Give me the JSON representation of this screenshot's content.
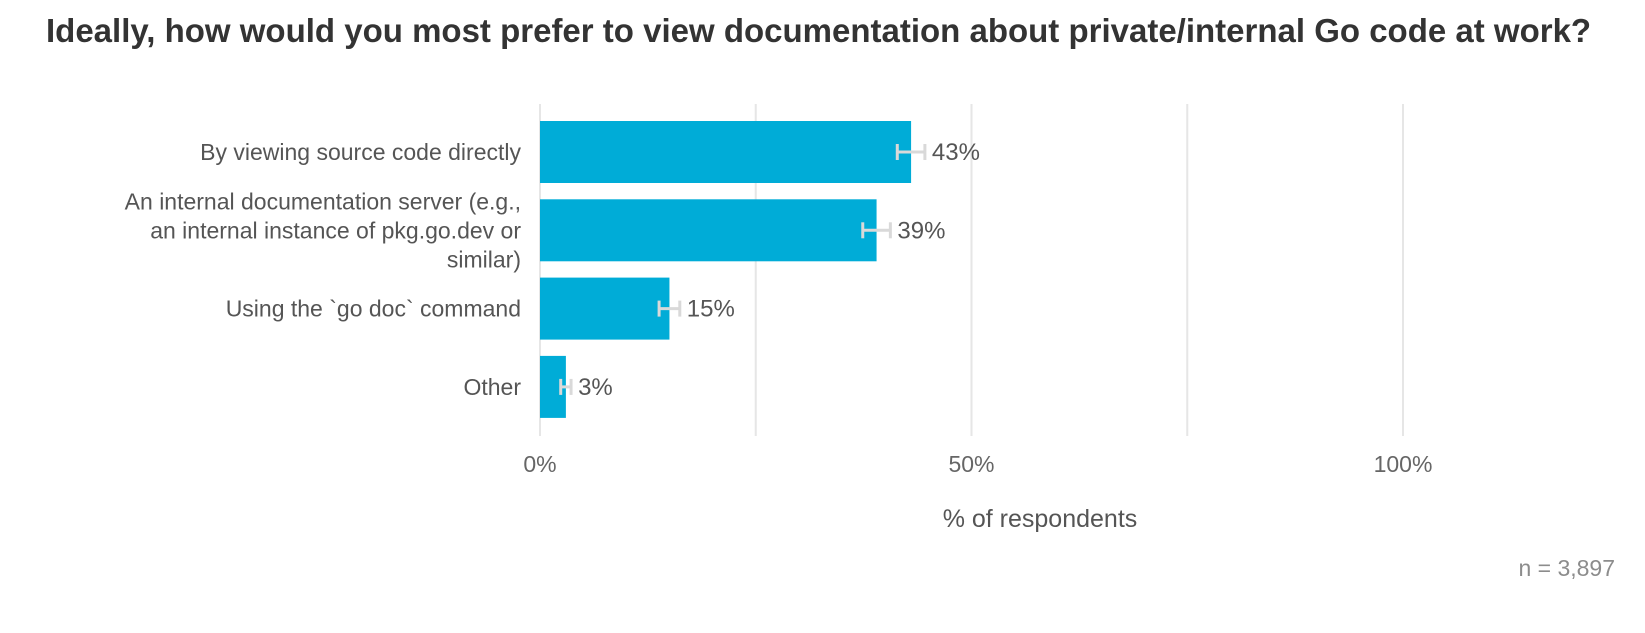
{
  "chart_data": {
    "type": "bar",
    "orientation": "horizontal",
    "title": "Ideally, how would you most prefer to view documentation about private/internal Go code at work?",
    "categories": [
      [
        "By viewing source code directly"
      ],
      [
        "An internal documentation server (e.g.,",
        "an internal instance of pkg.go.dev or",
        "similar)"
      ],
      [
        "Using the `go doc` command"
      ],
      [
        "Other"
      ]
    ],
    "values": [
      43,
      39,
      15,
      3
    ],
    "error_margin": [
      1.6,
      1.6,
      1.2,
      0.6
    ],
    "value_labels": [
      "43%",
      "39%",
      "15%",
      "3%"
    ],
    "xlabel": "% of respondents",
    "xlim": [
      0,
      100
    ],
    "x_ticks": [
      0,
      50,
      100
    ],
    "x_tick_labels": [
      "0%",
      "50%",
      "100%"
    ],
    "minor_gridlines": [
      25,
      75
    ],
    "grid": true,
    "bar_color": "#00ACD7",
    "error_bar_color": "#D9D9D9",
    "note": "n =  3,897"
  }
}
